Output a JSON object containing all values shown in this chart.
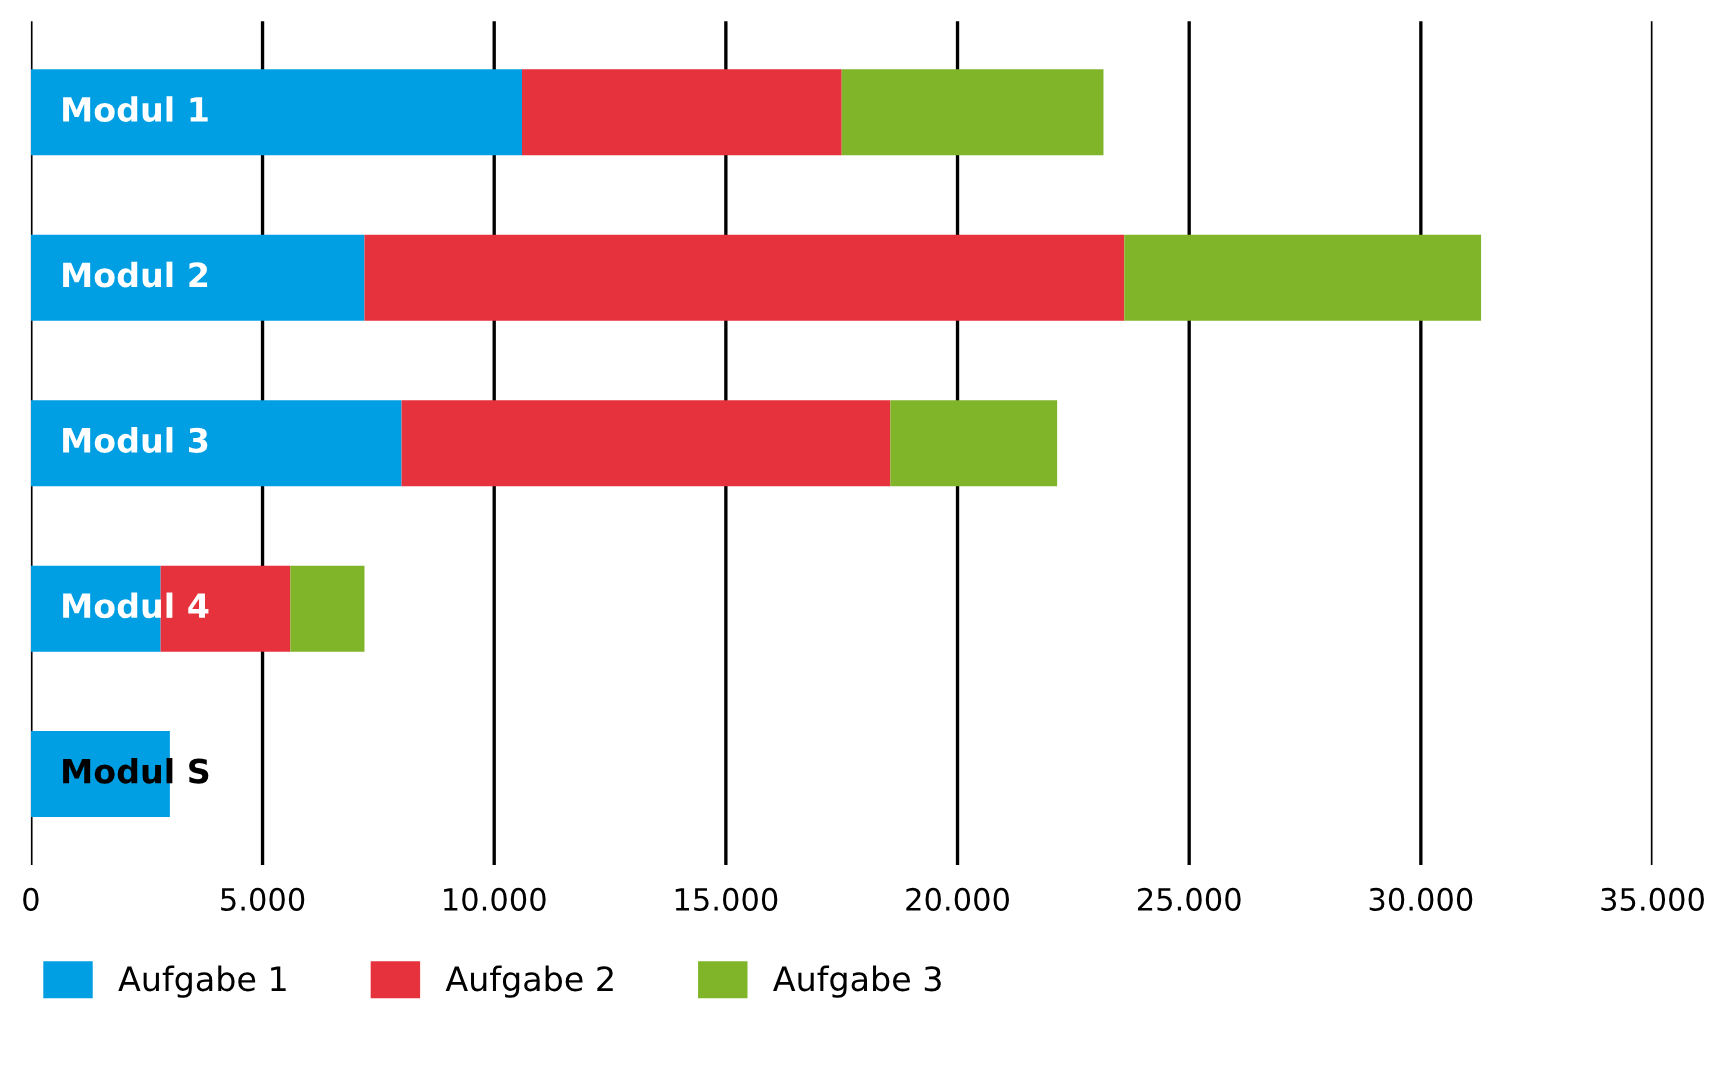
{
  "chart_data": {
    "type": "bar",
    "orientation": "horizontal",
    "stacked": true,
    "categories": [
      "Modul 1",
      "Modul 2",
      "Modul 3",
      "Modul 4",
      "Modul S"
    ],
    "series": [
      {
        "name": "Aufgabe 1",
        "color": "#009fe3",
        "values": [
          10600,
          7200,
          8000,
          2800,
          3000
        ]
      },
      {
        "name": "Aufgabe 2",
        "color": "#e6323c",
        "values": [
          6900,
          16400,
          10550,
          2800,
          0
        ]
      },
      {
        "name": "Aufgabe 3",
        "color": "#80b52a",
        "values": [
          5650,
          7700,
          3600,
          1600,
          0
        ]
      }
    ],
    "xlim": [
      0,
      35000
    ],
    "xticks": [
      0,
      {
        "value": 5000,
        "label": "5.000"
      },
      {
        "value": 10000,
        "label": "10.000"
      },
      {
        "value": 15000,
        "label": "15.000"
      },
      {
        "value": 20000,
        "label": "20.000"
      },
      {
        "value": 25000,
        "label": "25.000"
      },
      {
        "value": 30000,
        "label": "30.000"
      },
      {
        "value": 35000,
        "label": "35.000"
      }
    ],
    "grid": "x",
    "legend": "bottom left"
  }
}
